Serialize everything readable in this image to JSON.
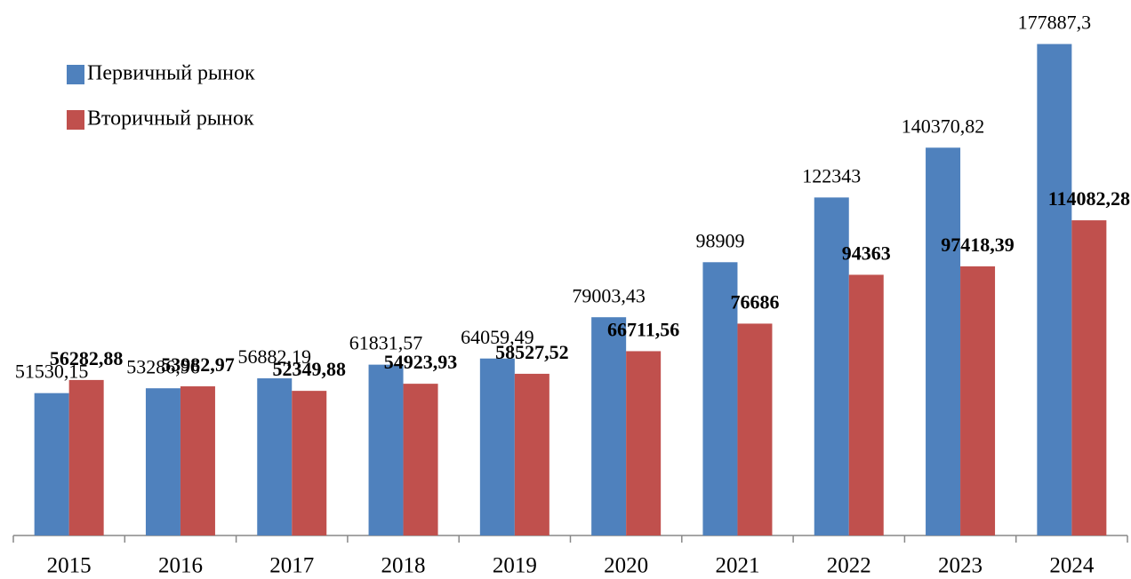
{
  "chart_data": {
    "type": "bar",
    "categories": [
      "2015",
      "2016",
      "2017",
      "2018",
      "2019",
      "2020",
      "2021",
      "2022",
      "2023",
      "2024"
    ],
    "series": [
      {
        "name": "Первичный рынок",
        "color": "#4f81bd",
        "values": [
          51530.15,
          53286.96,
          56882.19,
          61831.57,
          64059.49,
          79003.43,
          98909,
          122343,
          140370.82,
          177887.3
        ],
        "value_labels": [
          "51530,15",
          "53286,96",
          "56882,19",
          "61831,57",
          "64059,49",
          "79003,43",
          "98909",
          "122343",
          "140370,82",
          "177887,3"
        ]
      },
      {
        "name": "Вторичный рынок",
        "color": "#c0504d",
        "values": [
          56282.88,
          53982.97,
          52349.88,
          54923.93,
          58527.52,
          66711.56,
          76686,
          94363,
          97418.39,
          114082.28
        ],
        "value_labels": [
          "56282,88",
          "53982,97",
          "52349,88",
          "54923,93",
          "58527,52",
          "66711,56",
          "76686",
          "94363",
          "97418,39",
          "114082,28"
        ]
      }
    ],
    "ylim": [
      0,
      180000
    ],
    "legend": "top-left"
  }
}
